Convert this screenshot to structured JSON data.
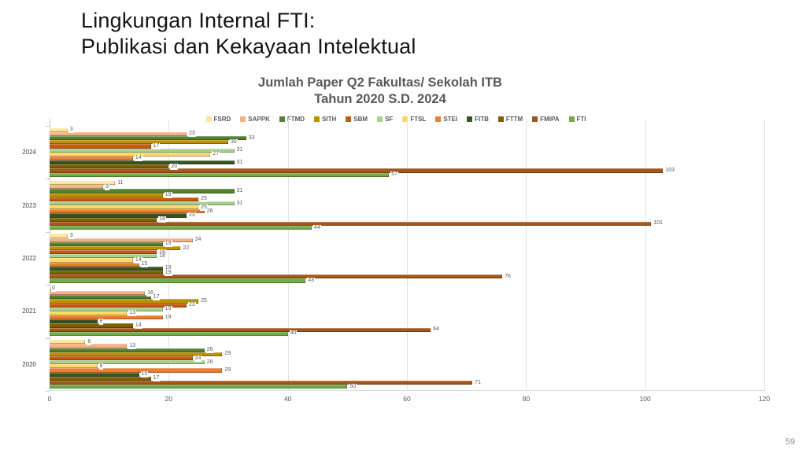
{
  "slide": {
    "title_line1": "Lingkungan Internal FTI:",
    "title_line2": "Publikasi dan Kekayaan Intelektual",
    "page_number": "59"
  },
  "chart_data": {
    "type": "bar",
    "orientation": "horizontal",
    "title_line1": "Jumlah Paper Q2 Fakultas/ Sekolah ITB",
    "title_line2": "Tahun 2020 S.D. 2024",
    "categories": [
      "2024",
      "2023",
      "2022",
      "2021",
      "2020"
    ],
    "xlim": [
      0,
      120
    ],
    "x_ticks": [
      0,
      20,
      40,
      60,
      80,
      100,
      120
    ],
    "grid": true,
    "legend_position": "top",
    "data_labels": true,
    "label_color": "#595959",
    "series": [
      {
        "name": "FSRD",
        "color": "#FFE699",
        "values": [
          3,
          11,
          3,
          0,
          6
        ]
      },
      {
        "name": "SAPPK",
        "color": "#F4B183",
        "values": [
          23,
          9,
          24,
          16,
          13
        ]
      },
      {
        "name": "FTMD",
        "color": "#548235",
        "values": [
          33,
          31,
          19,
          17,
          26
        ]
      },
      {
        "name": "SITH",
        "color": "#BF9000",
        "values": [
          30,
          19,
          22,
          25,
          29
        ]
      },
      {
        "name": "SBM",
        "color": "#C55A11",
        "values": [
          17,
          25,
          18,
          23,
          24
        ]
      },
      {
        "name": "SF",
        "color": "#A9D18E",
        "values": [
          31,
          31,
          18,
          19,
          26
        ]
      },
      {
        "name": "FTSL",
        "color": "#FFD966",
        "values": [
          27,
          25,
          14,
          13,
          8
        ]
      },
      {
        "name": "STEI",
        "color": "#ED7D31",
        "values": [
          14,
          26,
          15,
          19,
          29
        ]
      },
      {
        "name": "FITB",
        "color": "#375623",
        "values": [
          31,
          23,
          19,
          8,
          15
        ]
      },
      {
        "name": "FTTM",
        "color": "#7F6000",
        "values": [
          20,
          18,
          19,
          14,
          17
        ]
      },
      {
        "name": "FMIPA",
        "color": "#A4561B",
        "values": [
          103,
          101,
          76,
          64,
          71
        ]
      },
      {
        "name": "FTI",
        "color": "#70AD47",
        "values": [
          57,
          44,
          43,
          40,
          50
        ]
      }
    ]
  }
}
